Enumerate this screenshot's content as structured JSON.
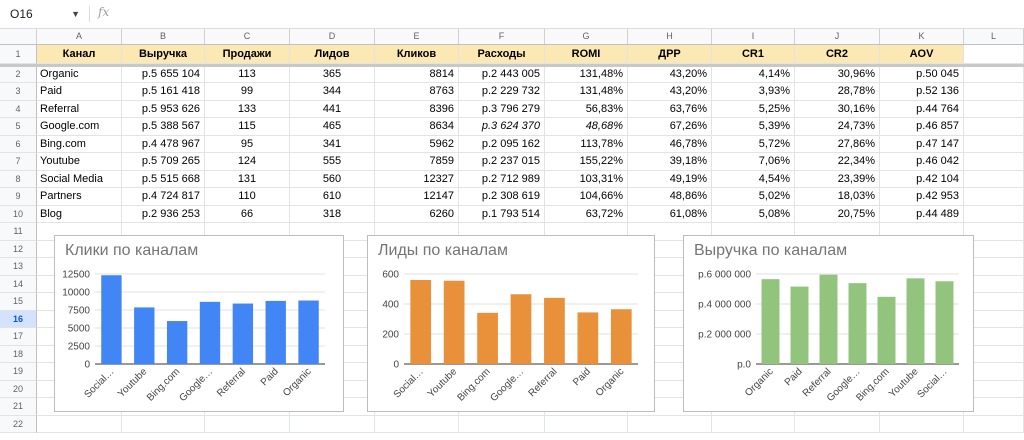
{
  "formula_bar": {
    "name_box": "O16",
    "fx": "fx"
  },
  "columns": [
    "A",
    "B",
    "C",
    "D",
    "E",
    "F",
    "G",
    "H",
    "I",
    "J",
    "K",
    "L"
  ],
  "rows": [
    "1",
    "2",
    "3",
    "4",
    "5",
    "6",
    "7",
    "8",
    "9",
    "10",
    "11",
    "12",
    "13",
    "14",
    "15",
    "16",
    "17",
    "18",
    "19",
    "20",
    "21",
    "22"
  ],
  "selected_row": "16",
  "table": {
    "headers": [
      "Канал",
      "Выручка",
      "Продажи",
      "Лидов",
      "Кликов",
      "Расходы",
      "ROMI",
      "ДРР",
      "CR1",
      "CR2",
      "AOV"
    ],
    "rows": [
      [
        "Organic",
        "р.5 655 104",
        "113",
        "365",
        "8814",
        "р.2 443 005",
        "131,48%",
        "43,20%",
        "4,14%",
        "30,96%",
        "р.50 045"
      ],
      [
        "Paid",
        "р.5 161 418",
        "99",
        "344",
        "8763",
        "р.2 229 732",
        "131,48%",
        "43,20%",
        "3,93%",
        "28,78%",
        "р.52 136"
      ],
      [
        "Referral",
        "р.5 953 626",
        "133",
        "441",
        "8396",
        "р.3 796 279",
        "56,83%",
        "63,76%",
        "5,25%",
        "30,16%",
        "р.44 764"
      ],
      [
        "Google.com",
        "р.5 388 567",
        "115",
        "465",
        "8634",
        "р.3 624 370",
        "48,68%",
        "67,26%",
        "5,39%",
        "24,73%",
        "р.46 857"
      ],
      [
        "Bing.com",
        "р.4 478 967",
        "95",
        "341",
        "5962",
        "р.2 095 162",
        "113,78%",
        "46,78%",
        "5,72%",
        "27,86%",
        "р.47 147"
      ],
      [
        "Youtube",
        "р.5 709 265",
        "124",
        "555",
        "7859",
        "р.2 237 015",
        "155,22%",
        "39,18%",
        "7,06%",
        "22,34%",
        "р.46 042"
      ],
      [
        "Social Media",
        "р.5 515 668",
        "131",
        "560",
        "12327",
        "р.2 712 989",
        "103,31%",
        "49,19%",
        "4,54%",
        "23,39%",
        "р.42 104"
      ],
      [
        "Partners",
        "р.4 724 817",
        "110",
        "610",
        "12147",
        "р.2 308 619",
        "104,66%",
        "48,86%",
        "5,02%",
        "18,03%",
        "р.42 953"
      ],
      [
        "Blog",
        "р.2 936 253",
        "66",
        "318",
        "6260",
        "р.1 793 514",
        "63,72%",
        "61,08%",
        "5,08%",
        "20,75%",
        "р.44 489"
      ]
    ]
  },
  "chart_data": [
    {
      "type": "bar",
      "title": "Клики по каналам",
      "categories": [
        "Social…",
        "Youtube",
        "Bing.com",
        "Google…",
        "Referral",
        "Paid",
        "Organic"
      ],
      "values": [
        12327,
        7859,
        5962,
        8634,
        8396,
        8763,
        8814
      ],
      "yticks": [
        "0",
        "2500",
        "5000",
        "7500",
        "10000",
        "12500"
      ],
      "ylim": [
        0,
        12500
      ],
      "color": "#4285f4",
      "xlabel": "",
      "ylabel": ""
    },
    {
      "type": "bar",
      "title": "Лиды по каналам",
      "categories": [
        "Social…",
        "Youtube",
        "Bing.com",
        "Google…",
        "Referral",
        "Paid",
        "Organic"
      ],
      "values": [
        560,
        555,
        341,
        465,
        441,
        344,
        365
      ],
      "yticks": [
        "0",
        "200",
        "400",
        "600"
      ],
      "ylim": [
        0,
        600
      ],
      "color": "#e8903a",
      "xlabel": "",
      "ylabel": ""
    },
    {
      "type": "bar",
      "title": "Выручка по каналам",
      "categories": [
        "Organic",
        "Paid",
        "Referral",
        "Google…",
        "Bing.com",
        "Youtube",
        "Social…"
      ],
      "values": [
        5655104,
        5161418,
        5953626,
        5388567,
        4478967,
        5709265,
        5515668
      ],
      "yticks": [
        "р.0",
        "р.2 000 000",
        "р.4 000 000",
        "р.6 000 000"
      ],
      "ylim": [
        0,
        6000000
      ],
      "color": "#93c47d",
      "xlabel": "",
      "ylabel": ""
    }
  ]
}
